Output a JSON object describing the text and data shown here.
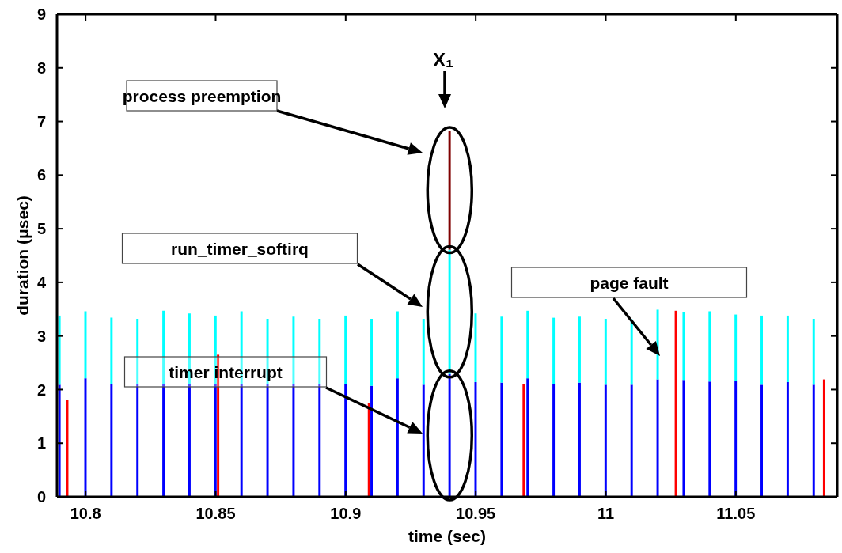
{
  "chart_data": {
    "type": "bar",
    "stacked": true,
    "xlabel": "time (sec)",
    "ylabel": "duration (μsec)",
    "x": [
      10.79,
      10.793,
      10.8,
      10.81,
      10.82,
      10.83,
      10.84,
      10.85,
      10.851,
      10.86,
      10.87,
      10.88,
      10.89,
      10.9,
      10.909,
      10.91,
      10.92,
      10.93,
      10.94,
      10.95,
      10.96,
      10.9685,
      10.97,
      10.98,
      10.99,
      11,
      11.01,
      11.02,
      11.027,
      11.03,
      11.04,
      11.05,
      11.06,
      11.07,
      11.08,
      11.084
    ],
    "series": [
      {
        "color": "#0000ff",
        "values": [
          2.09,
          null,
          2.21,
          2.11,
          2.1,
          2.1,
          2.1,
          2.1,
          null,
          2.1,
          2.1,
          2.1,
          2.1,
          2.1,
          null,
          2.07,
          2.21,
          2.09,
          2.29,
          2.14,
          2.13,
          null,
          2.21,
          2.11,
          2.13,
          2.09,
          2.09,
          2.19,
          null,
          2.18,
          2.15,
          2.16,
          2.09,
          2.14,
          2.09,
          null
        ]
      },
      {
        "color": "#00ffff",
        "values": [
          1.29,
          null,
          1.25,
          1.23,
          1.22,
          1.37,
          1.32,
          1.28,
          null,
          1.36,
          1.22,
          1.26,
          1.22,
          1.28,
          null,
          1.25,
          1.25,
          1.23,
          2.32,
          1.28,
          1.23,
          null,
          1.26,
          1.23,
          1.23,
          1.23,
          1.22,
          1.3,
          null,
          1.27,
          1.31,
          1.24,
          1.29,
          1.24,
          1.23,
          null
        ]
      },
      {
        "color": "#800000",
        "values": [
          null,
          null,
          null,
          null,
          null,
          null,
          null,
          null,
          null,
          null,
          null,
          null,
          null,
          null,
          null,
          null,
          null,
          null,
          2.22,
          null,
          null,
          null,
          null,
          null,
          null,
          null,
          null,
          null,
          null,
          null,
          null,
          null,
          null,
          null,
          null,
          null
        ]
      },
      {
        "color": "#ff0000",
        "values": [
          null,
          1.81,
          null,
          null,
          null,
          null,
          null,
          null,
          2.65,
          null,
          null,
          null,
          null,
          null,
          1.75,
          null,
          null,
          null,
          null,
          null,
          null,
          2.1,
          null,
          null,
          null,
          null,
          null,
          null,
          3.47,
          null,
          null,
          null,
          null,
          null,
          null,
          2.19
        ]
      }
    ],
    "xlim": [
      10.789,
      11.089
    ],
    "xticks": [
      10.8,
      10.85,
      10.9,
      10.95,
      11,
      11.05
    ],
    "ylim": [
      0,
      9
    ],
    "yticks": [
      0,
      1,
      2,
      3,
      4,
      5,
      6,
      7,
      8,
      9
    ],
    "grid": false,
    "legend": false,
    "annotations": [
      "process preemption",
      "run_timer_softirq",
      "timer interrupt",
      "page fault",
      "X₁"
    ]
  }
}
